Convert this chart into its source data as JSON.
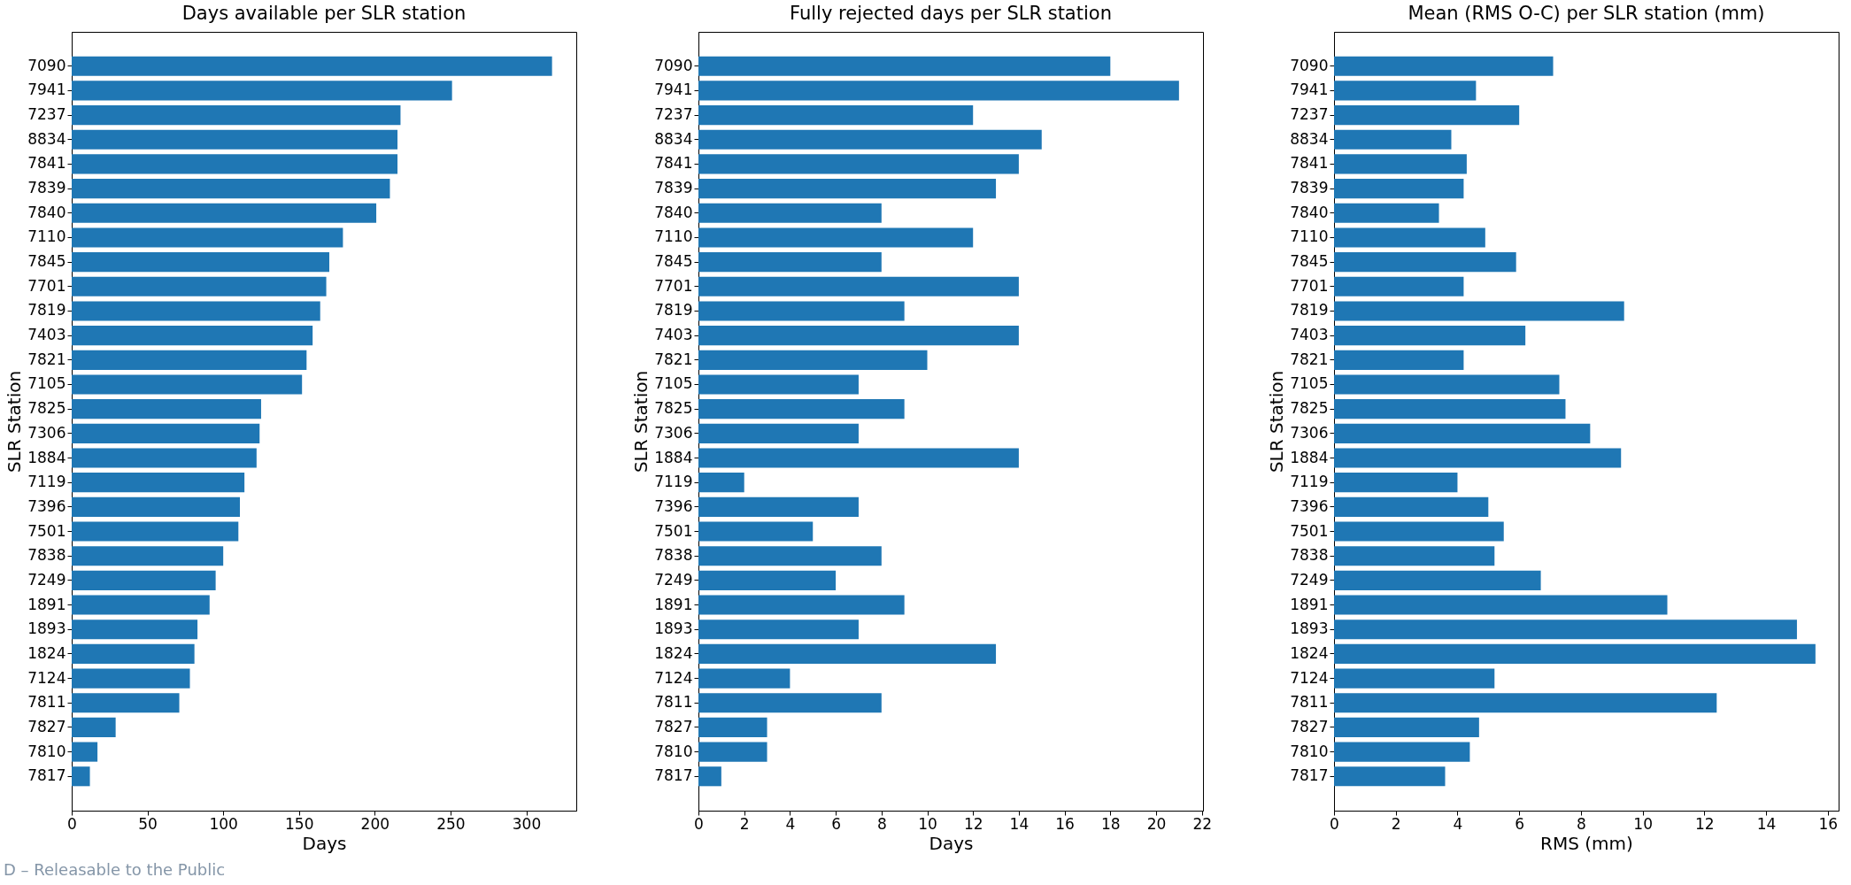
{
  "chart_data": [
    {
      "type": "bar",
      "orientation": "horizontal",
      "title": "Days available per SLR station",
      "xlabel": "Days",
      "ylabel": "SLR Station",
      "color": "#1f77b4",
      "categories": [
        "7090",
        "7941",
        "7237",
        "8834",
        "7841",
        "7839",
        "7840",
        "7110",
        "7845",
        "7701",
        "7819",
        "7403",
        "7821",
        "7105",
        "7825",
        "7306",
        "1884",
        "7119",
        "7396",
        "7501",
        "7838",
        "7249",
        "1891",
        "1893",
        "1824",
        "7124",
        "7811",
        "7827",
        "7810",
        "7817"
      ],
      "values": [
        317,
        251,
        217,
        215,
        215,
        210,
        201,
        179,
        170,
        168,
        164,
        159,
        155,
        152,
        125,
        124,
        122,
        114,
        111,
        110,
        100,
        95,
        91,
        83,
        81,
        78,
        71,
        29,
        17,
        12
      ],
      "xlim": [
        0,
        333
      ],
      "xticks": [
        0,
        50,
        100,
        150,
        200,
        250,
        300
      ],
      "annotations": [
        "D – Releasable to the Public"
      ]
    },
    {
      "type": "bar",
      "orientation": "horizontal",
      "title": "Fully rejected days per SLR station",
      "xlabel": "Days",
      "ylabel": "SLR Station",
      "color": "#1f77b4",
      "categories": [
        "7090",
        "7941",
        "7237",
        "8834",
        "7841",
        "7839",
        "7840",
        "7110",
        "7845",
        "7701",
        "7819",
        "7403",
        "7821",
        "7105",
        "7825",
        "7306",
        "1884",
        "7119",
        "7396",
        "7501",
        "7838",
        "7249",
        "1891",
        "1893",
        "1824",
        "7124",
        "7811",
        "7827",
        "7810",
        "7817"
      ],
      "values": [
        18,
        21,
        12,
        15,
        14,
        13,
        8,
        12,
        8,
        14,
        9,
        14,
        10,
        7,
        9,
        7,
        14,
        2,
        7,
        5,
        8,
        6,
        9,
        7,
        13,
        4,
        8,
        3,
        3,
        1
      ],
      "xlim": [
        0,
        22.05
      ],
      "xticks": [
        0,
        2,
        4,
        6,
        8,
        10,
        12,
        14,
        16,
        18,
        20,
        22
      ]
    },
    {
      "type": "bar",
      "orientation": "horizontal",
      "title": "Mean (RMS O-C) per SLR station (mm)",
      "xlabel": "RMS (mm)",
      "ylabel": "SLR Station",
      "color": "#1f77b4",
      "categories": [
        "7090",
        "7941",
        "7237",
        "8834",
        "7841",
        "7839",
        "7840",
        "7110",
        "7845",
        "7701",
        "7819",
        "7403",
        "7821",
        "7105",
        "7825",
        "7306",
        "1884",
        "7119",
        "7396",
        "7501",
        "7838",
        "7249",
        "1891",
        "1893",
        "1824",
        "7124",
        "7811",
        "7827",
        "7810",
        "7817"
      ],
      "values": [
        7.1,
        4.6,
        6.0,
        3.8,
        4.3,
        4.2,
        3.4,
        4.9,
        5.9,
        4.2,
        9.4,
        6.2,
        4.2,
        7.3,
        7.5,
        8.3,
        9.3,
        4.0,
        5.0,
        5.5,
        5.2,
        6.7,
        10.8,
        15.0,
        15.6,
        5.2,
        12.4,
        4.7,
        4.4,
        3.6
      ],
      "xlim": [
        0,
        16.35
      ],
      "xticks": [
        0,
        2,
        4,
        6,
        8,
        10,
        12,
        14,
        16
      ]
    }
  ]
}
